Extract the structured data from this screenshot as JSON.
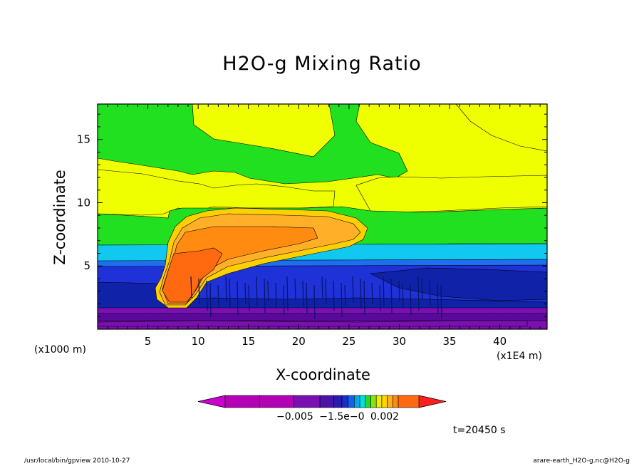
{
  "chart_data": {
    "type": "heatmap",
    "title": "H2O-g Mixing Ratio",
    "xlabel": "X-coordinate",
    "ylabel": "Z-coordinate",
    "x_unit_left": "(x1000 m)",
    "x_unit_right": "(x1E4 m)",
    "xlim": [
      0,
      44.7
    ],
    "ylim": [
      0,
      17.8
    ],
    "x_ticks": [
      5,
      10,
      15,
      20,
      25,
      30,
      35,
      40
    ],
    "y_ticks": [
      5,
      10,
      15
    ],
    "colorbar": {
      "labels_text": "−0.005 −1.5e−0  0.002",
      "colors": [
        "#cc00cc",
        "#b400b4",
        "#b400b4",
        "#7b10b0",
        "#4b14a8",
        "#2a1ab0",
        "#1a2ec8",
        "#1460e8",
        "#00a8f0",
        "#00e0e0",
        "#28d828",
        "#90e010",
        "#e8f000",
        "#ffd400",
        "#ffb020",
        "#ff8a10",
        "#ff6a10",
        "#ff2020"
      ]
    },
    "palette": {
      "purple_dark": "#5a0a9a",
      "purple": "#7b10b0",
      "blue_dark": "#0f22a8",
      "blue": "#1e32d8",
      "blue_light": "#1e6ef0",
      "cyan": "#10c8f0",
      "green": "#20e020",
      "yellow": "#f0ff00",
      "yellow_orange": "#ffd000",
      "orange_light": "#ffb028",
      "orange": "#ff8c10",
      "orange_dark": "#ff6a10"
    },
    "time_label": "t=20450 s"
  },
  "footer": {
    "left": "/usr/local/bin/gpview  2010-10-27",
    "right": "arare-earth_H2O-g.nc@H2O-g"
  }
}
